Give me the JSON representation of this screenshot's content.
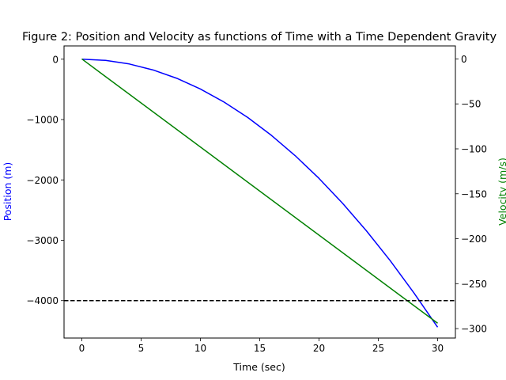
{
  "chart_data": {
    "type": "line",
    "title": "Figure 2: Position and Velocity as functions of Time with a Time Dependent Gravity",
    "xlabel": "Time (sec)",
    "ylabel_left": "Position (m)",
    "ylabel_right": "Velocity (m/s)",
    "xlim": [
      -1.5,
      31.5
    ],
    "ylim_left": [
      -4620,
      220
    ],
    "ylim_right": [
      -310.5,
      14.5
    ],
    "x_ticks": [
      0,
      5,
      10,
      15,
      20,
      25,
      30
    ],
    "x_tick_labels": [
      "0",
      "5",
      "10",
      "15",
      "20",
      "25",
      "30"
    ],
    "y_left_ticks": [
      0,
      -1000,
      -2000,
      -3000,
      -4000
    ],
    "y_left_tick_labels": [
      "0",
      "−1000",
      "−2000",
      "−3000",
      "−4000"
    ],
    "y_right_ticks": [
      0,
      -50,
      -100,
      -150,
      -200,
      -250,
      -300
    ],
    "y_right_tick_labels": [
      "0",
      "−50",
      "−100",
      "−150",
      "−200",
      "−250",
      "−300"
    ],
    "grid": false,
    "reference_line": {
      "axis": "left",
      "y": -4000,
      "style": "dashed",
      "color": "#000000"
    },
    "series": [
      {
        "axis": "left",
        "color": "#0000ff",
        "x": [
          0,
          2,
          4,
          6,
          8,
          10,
          12,
          14,
          16,
          18,
          20,
          22,
          24,
          26,
          28,
          30
        ],
        "y": [
          0,
          -20,
          -79,
          -178,
          -316,
          -494,
          -711,
          -967,
          -1264,
          -1600,
          -1975,
          -2390,
          -2844,
          -3337,
          -3871,
          -4440
        ]
      },
      {
        "axis": "right",
        "color": "#008000",
        "x": [
          0,
          30
        ],
        "y": [
          0,
          -294
        ]
      }
    ]
  }
}
